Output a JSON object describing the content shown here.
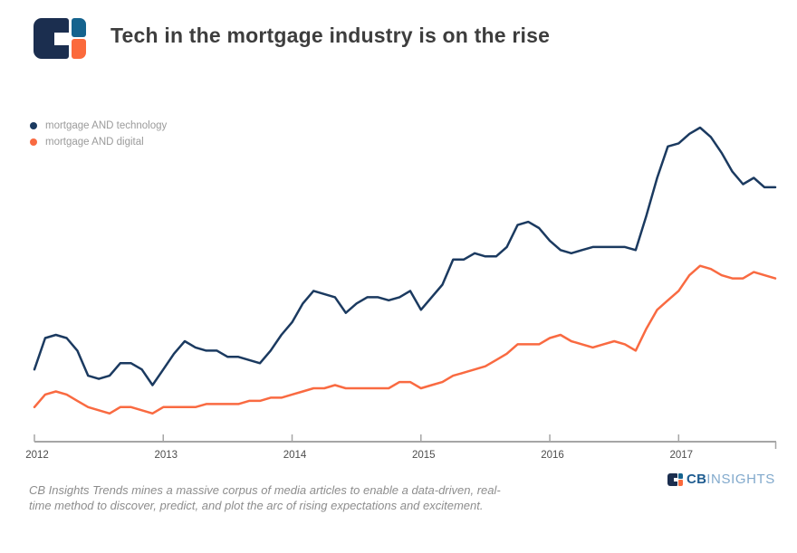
{
  "header": {
    "title": "Tech in the mortgage industry is on the rise"
  },
  "chart_data": {
    "type": "line",
    "title": "Tech in the mortgage industry is on the rise",
    "xlabel": "",
    "ylabel": "",
    "grid": "off",
    "legend_position": "top-left",
    "x_tick_labels": [
      "2012",
      "2013",
      "2014",
      "2015",
      "2016",
      "2017"
    ],
    "x_start": "2012-01",
    "x_frequency": "monthly",
    "y_axis_visible": false,
    "ylim": [
      0,
      105
    ],
    "series": [
      {
        "name": "mortgage AND technology",
        "color": "#1b3a60",
        "values": [
          23,
          33,
          34,
          33,
          29,
          21,
          20,
          21,
          25,
          25,
          23,
          18,
          23,
          28,
          32,
          30,
          29,
          29,
          27,
          27,
          26,
          25,
          29,
          34,
          38,
          44,
          48,
          47,
          46,
          41,
          44,
          46,
          46,
          45,
          46,
          48,
          42,
          46,
          50,
          58,
          58,
          60,
          59,
          59,
          62,
          69,
          70,
          68,
          64,
          61,
          60,
          61,
          62,
          62,
          62,
          62,
          61,
          72,
          84,
          94,
          95,
          98,
          100,
          97,
          92,
          86,
          82,
          84,
          81,
          81
        ]
      },
      {
        "name": "mortgage AND digital",
        "color": "#f96a41",
        "values": [
          11,
          15,
          16,
          15,
          13,
          11,
          10,
          9,
          11,
          11,
          10,
          9,
          11,
          11,
          11,
          11,
          12,
          12,
          12,
          12,
          13,
          13,
          14,
          14,
          15,
          16,
          17,
          17,
          18,
          17,
          17,
          17,
          17,
          17,
          19,
          19,
          17,
          18,
          19,
          21,
          22,
          23,
          24,
          26,
          28,
          31,
          31,
          31,
          33,
          34,
          32,
          31,
          30,
          31,
          32,
          31,
          29,
          36,
          42,
          45,
          48,
          53,
          56,
          55,
          53,
          52,
          52,
          54,
          53,
          52
        ]
      }
    ]
  },
  "footer": {
    "line1": "CB Insights Trends mines a massive corpus of media articles to enable a data-driven, real-",
    "line2": "time method to discover, predict, and plot the arc of rising expectations and excitement.",
    "wordmark_cb": "CB",
    "wordmark_insights": "INSIGHTS"
  },
  "colors": {
    "title_text": "#3d3d3d",
    "legend_text": "#9b9b9b",
    "axis_line": "#a6a6a6",
    "tick_label": "#4d4d4d",
    "footer_text": "#8d8d8d",
    "logo_navy": "#1b2e4f",
    "logo_blue": "#15638e",
    "logo_orange": "#fb6a3c",
    "wordmark_cb_color": "#1e5c90",
    "wordmark_insights_color": "#81a9cc"
  }
}
